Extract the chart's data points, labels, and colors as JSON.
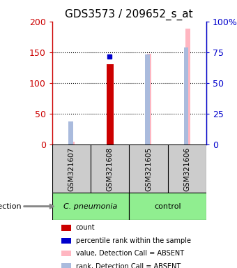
{
  "title": "GDS3573 / 209652_s_at",
  "samples": [
    "GSM321607",
    "GSM321608",
    "GSM321605",
    "GSM321606"
  ],
  "left_ylim": [
    0,
    200
  ],
  "right_ylim": [
    0,
    100
  ],
  "left_yticks": [
    0,
    50,
    100,
    150,
    200
  ],
  "right_yticks": [
    0,
    25,
    50,
    75,
    100
  ],
  "left_yticklabels": [
    "0",
    "50",
    "100",
    "150",
    "200"
  ],
  "right_yticklabels": [
    "0",
    "25",
    "50",
    "75",
    "100%"
  ],
  "count_values": [
    null,
    131,
    null,
    null
  ],
  "percentile_values": [
    null,
    143,
    null,
    null
  ],
  "absent_value_bars": [
    5,
    null,
    148,
    188
  ],
  "absent_rank_bars": [
    38,
    null,
    147,
    158
  ],
  "count_color": "#cc0000",
  "percentile_color": "#0000cc",
  "absent_value_color": "#FFB6C1",
  "absent_rank_color": "#AABBDD",
  "left_label_color": "#cc0000",
  "right_label_color": "#0000cc",
  "infection_label": "infection",
  "legend_items": [
    {
      "color": "#cc0000",
      "label": "count"
    },
    {
      "color": "#0000cc",
      "label": "percentile rank within the sample"
    },
    {
      "color": "#FFB6C1",
      "label": "value, Detection Call = ABSENT"
    },
    {
      "color": "#AABBDD",
      "label": "rank, Detection Call = ABSENT"
    }
  ],
  "group_label_1": "C. pneumonia",
  "group_label_2": "control",
  "label_box_color": "#cccccc",
  "group1_color": "#90EE90",
  "group2_color": "#90EE90"
}
